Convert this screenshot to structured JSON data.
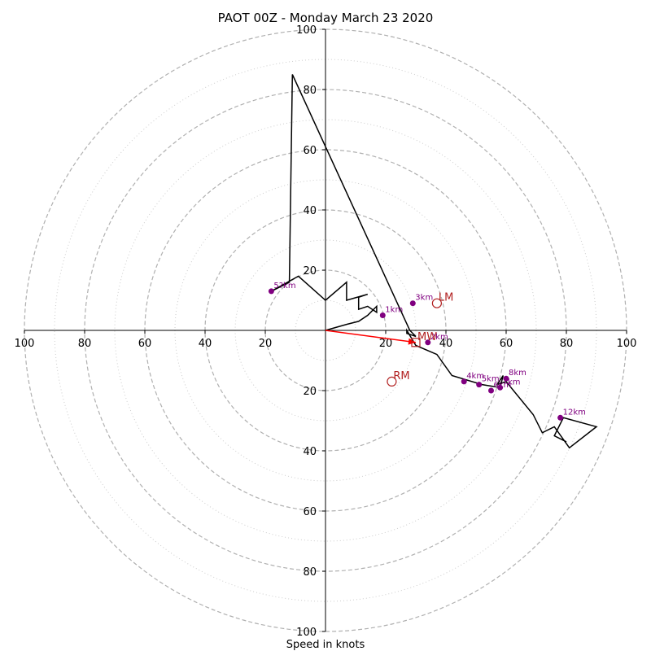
{
  "chart_data": {
    "type": "hodograph",
    "title": "PAOT 00Z - Monday March 23 2020",
    "xlabel": "Speed in knots",
    "range": [
      -100,
      100
    ],
    "axis_ticks": [
      100,
      80,
      60,
      40,
      20
    ],
    "tick_labels": [
      "100",
      "80",
      "60",
      "40",
      "20"
    ],
    "rings_dashed": [
      20,
      40,
      60,
      80,
      100
    ],
    "rings_dotted": [
      10,
      30,
      50,
      70,
      90
    ],
    "wind_trace": [
      [
        0,
        0
      ],
      [
        7,
        2
      ],
      [
        11,
        3
      ],
      [
        14,
        5
      ],
      [
        17,
        8
      ],
      [
        17,
        6
      ],
      [
        14,
        8
      ],
      [
        11,
        7
      ],
      [
        11,
        11
      ],
      [
        14,
        12
      ],
      [
        7,
        10
      ],
      [
        7,
        16
      ],
      [
        0,
        10
      ],
      [
        -9,
        18
      ],
      [
        -18,
        13
      ],
      [
        -12,
        16
      ],
      [
        -11,
        85
      ],
      [
        28,
        0
      ],
      [
        30,
        -2
      ],
      [
        27,
        -1
      ],
      [
        27,
        0
      ],
      [
        30,
        -5
      ],
      [
        37,
        -8
      ],
      [
        42,
        -15
      ],
      [
        52,
        -18
      ],
      [
        58,
        -19
      ],
      [
        59,
        -15
      ],
      [
        57,
        -18
      ],
      [
        60,
        -17
      ],
      [
        69,
        -28
      ],
      [
        72,
        -34
      ],
      [
        76,
        -32
      ],
      [
        81,
        -39
      ],
      [
        90,
        -32
      ],
      [
        79,
        -29
      ],
      [
        76,
        -35
      ],
      [
        80,
        -37
      ]
    ],
    "heights": [
      {
        "label": "1km",
        "x": 19,
        "y": 5
      },
      {
        "label": "3km",
        "x": 29,
        "y": 9
      },
      {
        "label": "2km",
        "x": 34,
        "y": -4
      },
      {
        "label": "4km",
        "x": 46,
        "y": -17
      },
      {
        "label": "5km",
        "x": 51,
        "y": -18
      },
      {
        "label": "6km",
        "x": 55,
        "y": -20
      },
      {
        "label": "7km",
        "x": 58,
        "y": -19
      },
      {
        "label": "8km",
        "x": 60,
        "y": -16
      },
      {
        "label": "12km",
        "x": 78,
        "y": -29
      },
      {
        "label": "5?km",
        "x": -18,
        "y": 13
      }
    ],
    "markers": [
      {
        "label": "LM",
        "x": 37,
        "y": 9,
        "shape": "circle"
      },
      {
        "label": "RM",
        "x": 22,
        "y": -17,
        "shape": "circle"
      },
      {
        "label": "MW",
        "x": 30,
        "y": -4,
        "shape": "square"
      }
    ],
    "mean_wind_vector": {
      "from": [
        0,
        0
      ],
      "to": [
        30,
        -4
      ]
    },
    "colors": {
      "trace": "#000000",
      "heights": "#800080",
      "markers": "#b22222",
      "vector": "#ff0000",
      "rings": "#b0b0b0",
      "axes": "#000000"
    }
  }
}
